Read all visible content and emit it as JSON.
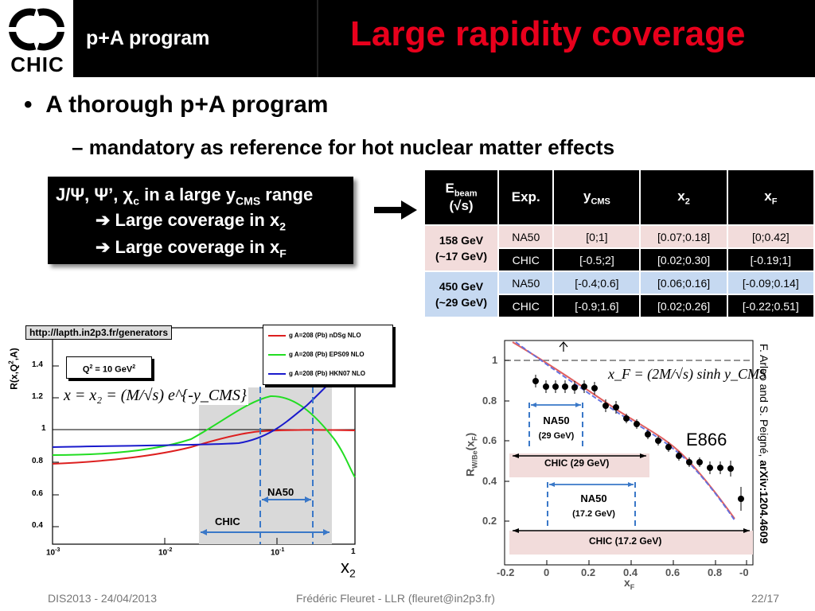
{
  "header": {
    "logo_text": "CHIC",
    "program": "p+A program",
    "title": "Large rapidity coverage"
  },
  "bullets": {
    "b1": "A thorough p+A program",
    "b2": "mandatory as reference for hot nuclear matter effects"
  },
  "box": {
    "line1_a": "J/Ψ, Ψ’, χ",
    "line1_sub": "c",
    "line1_b": " in a large y",
    "line1_sub2": "CMS",
    "line1_c": " range",
    "line2": "➔ Large coverage in x",
    "line2_sub": "2",
    "line3": "➔ Large coverage in x",
    "line3_sub": "F"
  },
  "table": {
    "h_ebeam": "E",
    "h_ebeam_sub": "beam",
    "h_sqrts": "(√s)",
    "h_exp": "Exp.",
    "h_ycms": "y",
    "h_ycms_sub": "CMS",
    "h_x2": "x",
    "h_x2_sub": "2",
    "h_xf": "x",
    "h_xf_sub": "F",
    "group1": "158 GeV",
    "group1b": "(~17 GeV)",
    "group2": "450 GeV",
    "group2b": "(~29 GeV)",
    "rows": [
      {
        "exp": "NA50",
        "y": "[0;1]",
        "x2": "[0.07;0.18]",
        "xf": "[0;0.42]"
      },
      {
        "exp": "CHIC",
        "y": "[-0.5;2]",
        "x2": "[0.02;0.30]",
        "xf": "[-0.19;1]"
      },
      {
        "exp": "NA50",
        "y": "[-0.4;0.6]",
        "x2": "[0.06;0.16]",
        "xf": "[-0.09;0.14]"
      },
      {
        "exp": "CHIC",
        "y": "[-0.9;1.6]",
        "x2": "[0.02;0.26]",
        "xf": "[-0.22;0.51]"
      }
    ]
  },
  "left_plot": {
    "url": "http://lapth.in2p3.fr/generators",
    "ylabel": "R(x,Q",
    "ylabel_sup": "2",
    "ylabel_end": ",A)",
    "q2": "Q",
    "q2_sup": "2",
    "q2_end": " = 10 GeV",
    "q2_sup2": "2",
    "formula": "x = x₂ = (M/√s) e^{-y_CMS}",
    "legend": [
      "g  A=208 (Pb) nDSg NLO",
      "g  A=208 (Pb) EPS09 NLO",
      "g  A=208 (Pb) HKN07 NLO"
    ],
    "yticks": [
      "1.4",
      "1.2",
      "1",
      "0.8",
      "0.6",
      "0.4"
    ],
    "xticks": [
      "10",
      "10",
      "10",
      "10"
    ],
    "xticks_sup": [
      "-3",
      "-2",
      "-1",
      ""
    ],
    "xticks_last": "1",
    "na50": "NA50",
    "chic": "CHIC",
    "xlabel": "x",
    "xlabel_sub": "2",
    "colors": {
      "red": "#dd1f1f",
      "green": "#22dd22",
      "blue": "#1a1acc",
      "band": "#d9d9d9"
    }
  },
  "right_plot": {
    "formula": "x_F = (2M/√s) sinh y_CMS",
    "e866": "E866",
    "na50_29": "NA50",
    "na50_29_b": "(29 GeV)",
    "chic_29": "CHIC (29 GeV)",
    "na50_17": "NA50",
    "na50_17_b": "(17.2 GeV)",
    "chic_17": "CHIC (17.2 GeV)",
    "ylabel": "R",
    "ylabel_sub": "W/Be",
    "ylabel_end": "(x",
    "ylabel_sub2": "F",
    "ylabel_close": ")",
    "yticks": [
      "1",
      "0.8",
      "0.6",
      "0.4",
      "0.2"
    ],
    "xticks": [
      "-0.2",
      "0",
      "0.2",
      "0.4",
      "0.6",
      "0.8",
      "-0"
    ],
    "xlabel": "x",
    "xlabel_sub": "F",
    "side_note": "F. Arleo and S. Peigné, ",
    "side_note_b": "arXiv:1204.4609"
  },
  "footer": {
    "left": "DIS2013 - 24/04/2013",
    "center": "Frédéric Fleuret - LLR (fleuret@in2p3.fr)",
    "right": "22/17"
  }
}
